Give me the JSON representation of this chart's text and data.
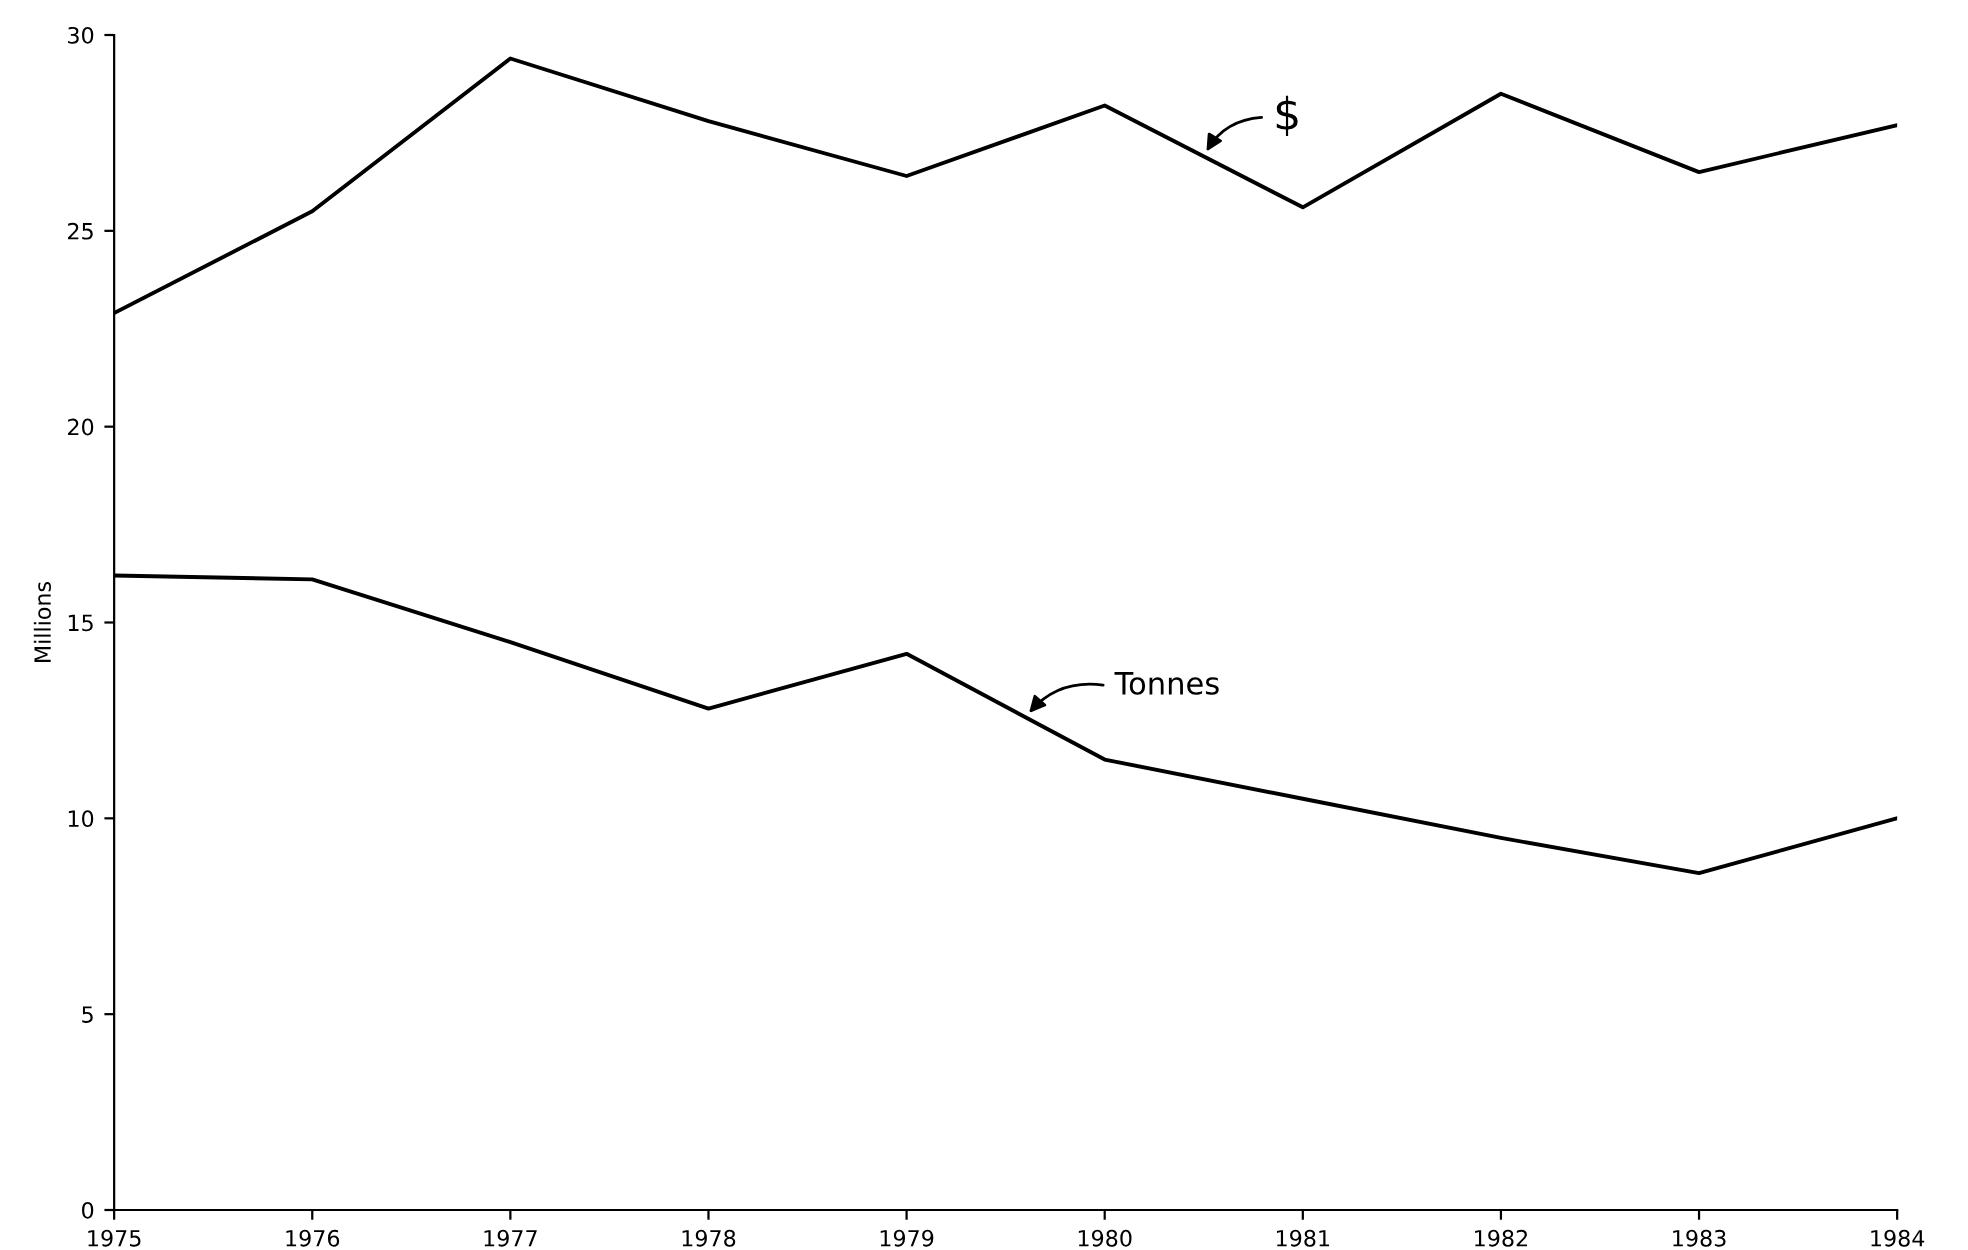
{
  "chart_data": {
    "type": "line",
    "ylabel": "Millions",
    "x": [
      1975,
      1976,
      1977,
      1978,
      1979,
      1980,
      1981,
      1982,
      1983,
      1984
    ],
    "series": [
      {
        "name": "$",
        "color": "#000000",
        "values": [
          22.9,
          25.5,
          29.4,
          27.8,
          26.4,
          28.2,
          25.6,
          28.5,
          26.5,
          27.7
        ]
      },
      {
        "name": "Tonnes",
        "color": "#000000",
        "values": [
          16.2,
          16.1,
          14.5,
          12.8,
          14.2,
          11.5,
          10.5,
          9.5,
          8.6,
          10.0
        ]
      }
    ],
    "xlim": [
      1975,
      1984
    ],
    "xticks": [
      1975,
      1976,
      1977,
      1978,
      1979,
      1980,
      1981,
      1982,
      1983,
      1984
    ],
    "ylim": [
      0,
      30
    ],
    "yticks": [
      0,
      5,
      10,
      15,
      20,
      25,
      30
    ],
    "grid": false,
    "legend": "right",
    "marker": "none",
    "line_style": "solid"
  }
}
